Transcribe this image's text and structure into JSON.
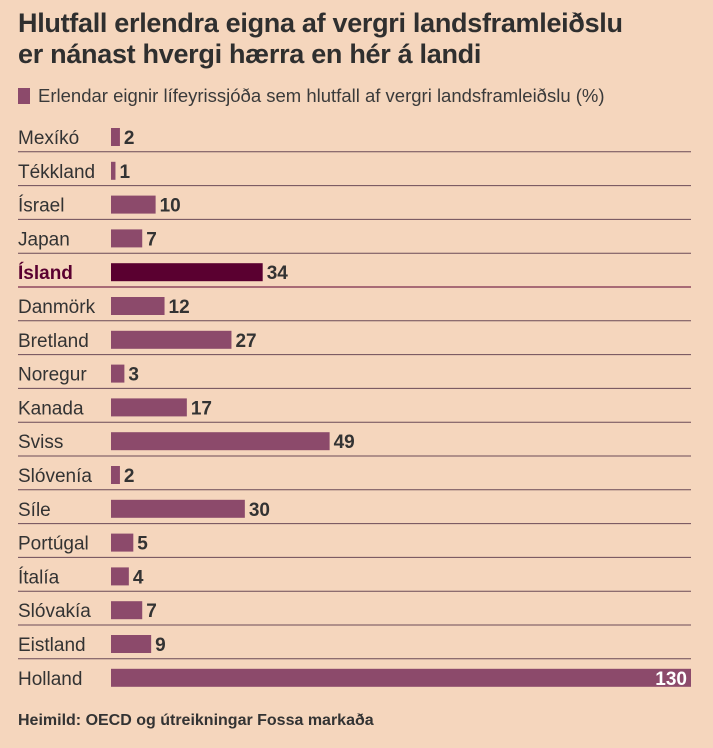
{
  "title_line1": "Hlutfall erlendra eigna af vergri landsframleiðslu",
  "title_line2": "er nánast hvergi hærra en hér á landi",
  "source": "Heimild: OECD og útreikningar Fossa markaða",
  "colors": {
    "bar": "#8c4a6b",
    "highlight": "#5a0030",
    "background": "#f5d6bd"
  },
  "chart_data": {
    "type": "bar",
    "orientation": "horizontal",
    "series": [
      {
        "name": "Erlendar eignir lífeyrissjóða sem hlutfall af vergri landsframleiðslu (%)",
        "values": [
          2,
          1,
          10,
          7,
          34,
          12,
          27,
          3,
          17,
          49,
          2,
          30,
          5,
          4,
          7,
          9,
          130
        ]
      }
    ],
    "categories": [
      "Mexíkó",
      "Tékkland",
      "Ísrael",
      "Japan",
      "Ísland",
      "Danmörk",
      "Bretland",
      "Noregur",
      "Kanada",
      "Sviss",
      "Slóvenía",
      "Síle",
      "Portúgal",
      "Ítalía",
      "Slóvakía",
      "Eistland",
      "Holland"
    ],
    "value_labels": [
      "2",
      "1",
      "10",
      "7",
      "34",
      "12",
      "27",
      "3",
      "17",
      "49",
      "2",
      "30",
      "5",
      "4",
      "7",
      "9",
      "130"
    ],
    "highlight_category": "Ísland",
    "xlim": [
      0,
      130
    ],
    "grid": false,
    "legend_position": "top-left"
  }
}
